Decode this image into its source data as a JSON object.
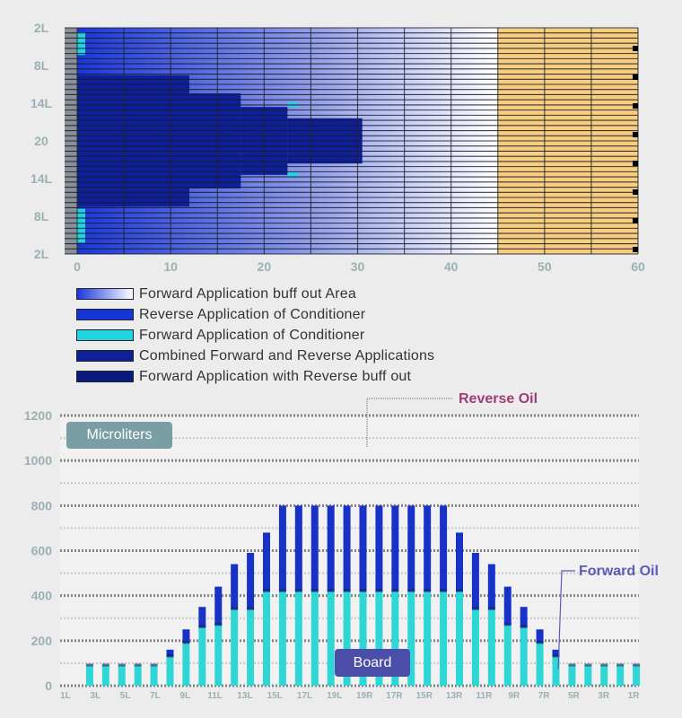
{
  "colors": {
    "background": "#ececec",
    "white_zone": "#ffffff",
    "tan_zone": "#f7cd80",
    "buff_gradient_start": "#1a37d8",
    "reverse": "#1436d4",
    "forward_cyan": "#22d3e0",
    "combined": "#0e1f9a",
    "dark_navy": "#0a1a7a",
    "reverse_bar": "#1832c8",
    "forward_bar": "#2ed6d6",
    "axis_text": "#9ab0b4",
    "badge_microliters": "#7a9ea4",
    "badge_board": "#4a4ea8",
    "reverse_oil_label": "#a03c78",
    "forward_oil_label": "#5a5cb8"
  },
  "chart_data": [
    {
      "type": "heatmap",
      "title": "",
      "xlabel": "",
      "ylabel": "",
      "xlim": [
        0,
        60
      ],
      "x_ticks": [
        "0",
        "10",
        "20",
        "30",
        "40",
        "50",
        "60"
      ],
      "y_ticks": [
        "2L",
        "8L",
        "14L",
        "20",
        "14L",
        "8L",
        "2L"
      ],
      "zones": [
        {
          "name": "buff_out_gradient",
          "x_from": 0,
          "x_to": 45
        },
        {
          "name": "tan",
          "x_from": 45,
          "x_to": 60
        }
      ],
      "regions": [
        {
          "name": "combined",
          "x_from": 0,
          "x_to": 12,
          "y_from": 0.21,
          "y_to": 0.79
        },
        {
          "name": "combined",
          "x_from": 12,
          "x_to": 17.5,
          "y_from": 0.29,
          "y_to": 0.71
        },
        {
          "name": "combined",
          "x_from": 17.5,
          "x_to": 22.5,
          "y_from": 0.35,
          "y_to": 0.65
        },
        {
          "name": "combined",
          "x_from": 22.5,
          "x_to": 30.5,
          "y_from": 0.4,
          "y_to": 0.6
        }
      ],
      "legend": [
        {
          "label": "Forward Application buff out Area",
          "swatch": "gradient"
        },
        {
          "label": "Reverse Application of Conditioner",
          "swatch": "reverse"
        },
        {
          "label": "Forward Application of Conditioner",
          "swatch": "forward_cyan"
        },
        {
          "label": "Combined Forward and Reverse Applications",
          "swatch": "combined"
        },
        {
          "label": "Forward Application with Reverse buff out",
          "swatch": "dark_navy"
        }
      ]
    },
    {
      "type": "bar",
      "title": "",
      "ylabel": "Microliters",
      "xlabel": "Board",
      "ylim": [
        0,
        1200
      ],
      "y_ticks": [
        "0",
        "200",
        "400",
        "600",
        "800",
        "1000",
        "1200"
      ],
      "x_tick_labels": [
        "1L",
        "3L",
        "5L",
        "7L",
        "9L",
        "11L",
        "13L",
        "15L",
        "17L",
        "19L",
        "19R",
        "17R",
        "15R",
        "13R",
        "11R",
        "9R",
        "7R",
        "5R",
        "3R",
        "1R"
      ],
      "series": [
        {
          "name": "Forward Oil",
          "values": [
            90,
            90,
            90,
            90,
            90,
            130,
            190,
            260,
            270,
            340,
            340,
            420,
            420,
            420,
            420,
            420,
            420,
            420,
            420,
            420,
            420,
            420,
            420,
            420,
            340,
            340,
            270,
            260,
            190,
            130,
            90,
            90,
            90,
            90,
            90
          ]
        },
        {
          "name": "Reverse Oil",
          "values": [
            0,
            0,
            0,
            0,
            0,
            30,
            60,
            90,
            170,
            200,
            250,
            260,
            380,
            380,
            380,
            380,
            380,
            380,
            380,
            380,
            380,
            380,
            380,
            260,
            250,
            200,
            170,
            90,
            60,
            30,
            0,
            0,
            0,
            0,
            0
          ]
        }
      ],
      "callouts": {
        "microliters": "Microliters",
        "board": "Board",
        "reverse_oil": "Reverse Oil",
        "forward_oil": "Forward Oil"
      }
    }
  ]
}
